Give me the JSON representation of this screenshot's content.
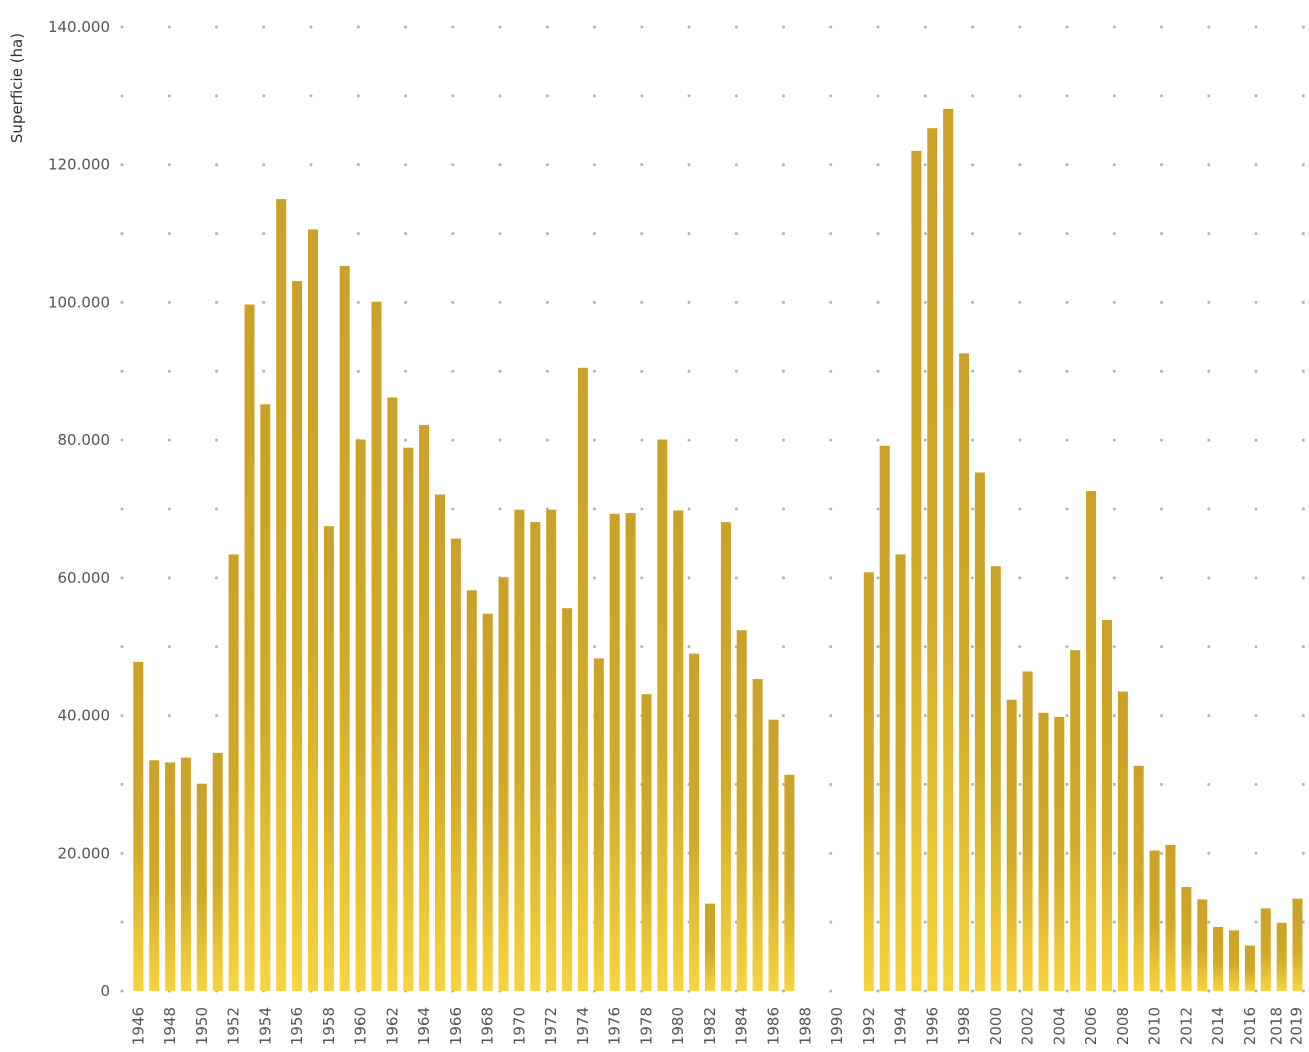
{
  "chart_data": {
    "type": "bar",
    "title": "",
    "xlabel": "",
    "ylabel": "Superficie (ha)",
    "ylim": [
      0,
      140000
    ],
    "grid": "dotted",
    "legend": "none",
    "bar_color": "#c9a227",
    "bar_color_light": "#f9d43c",
    "y_ticks": [
      "0",
      "20.000",
      "40.000",
      "60.000",
      "80.000",
      "100.000",
      "120.000",
      "140.000"
    ],
    "y_tick_values": [
      0,
      20000,
      40000,
      60000,
      80000,
      100000,
      120000,
      140000
    ],
    "x_tick_labels": [
      "1946",
      "1948",
      "1950",
      "1952",
      "1954",
      "1956",
      "1958",
      "1960",
      "1962",
      "1964",
      "1966",
      "1968",
      "1970",
      "1972",
      "1974",
      "1976",
      "1978",
      "1980",
      "1982",
      "1984",
      "1986",
      "1988",
      "1990",
      "1992",
      "1994",
      "1996",
      "1998",
      "2000",
      "2002",
      "2004",
      "2006",
      "2008",
      "2010",
      "2012",
      "2014",
      "2016",
      "2018",
      "2019"
    ],
    "categories": [
      1946,
      1947,
      1948,
      1949,
      1950,
      1951,
      1952,
      1953,
      1954,
      1955,
      1956,
      1957,
      1958,
      1959,
      1960,
      1961,
      1962,
      1963,
      1964,
      1965,
      1966,
      1967,
      1968,
      1969,
      1970,
      1971,
      1972,
      1973,
      1974,
      1975,
      1976,
      1977,
      1978,
      1979,
      1980,
      1981,
      1982,
      1983,
      1984,
      1985,
      1986,
      1987,
      1988,
      1989,
      1990,
      1991,
      1992,
      1993,
      1994,
      1995,
      1996,
      1997,
      1998,
      1999,
      2000,
      2001,
      2002,
      2003,
      2004,
      2005,
      2006,
      2007,
      2008,
      2009,
      2010,
      2011,
      2012,
      2013,
      2014,
      2015,
      2016,
      2017,
      2018,
      2019
    ],
    "series": [
      {
        "values": [
          47800,
          33500,
          33200,
          33900,
          30100,
          34600,
          63400,
          99700,
          85200,
          115000,
          103100,
          110600,
          67500,
          105300,
          80100,
          100100,
          86200,
          78900,
          82200,
          72100,
          65700,
          58200,
          54800,
          60100,
          69900,
          68100,
          69900,
          55600,
          90500,
          48300,
          69300,
          69400,
          43100,
          80100,
          69800,
          49000,
          12700,
          68100,
          52400,
          45300,
          39400,
          31400,
          null,
          null,
          null,
          null,
          60800,
          79200,
          63400,
          122000,
          125300,
          128100,
          92600,
          75300,
          61700,
          42300,
          46400,
          40400,
          39800,
          49500,
          72600,
          53900,
          43500,
          32700,
          20400,
          21200,
          15100,
          13300,
          9300,
          8800,
          6600,
          12000,
          9900,
          13400
        ]
      }
    ]
  }
}
